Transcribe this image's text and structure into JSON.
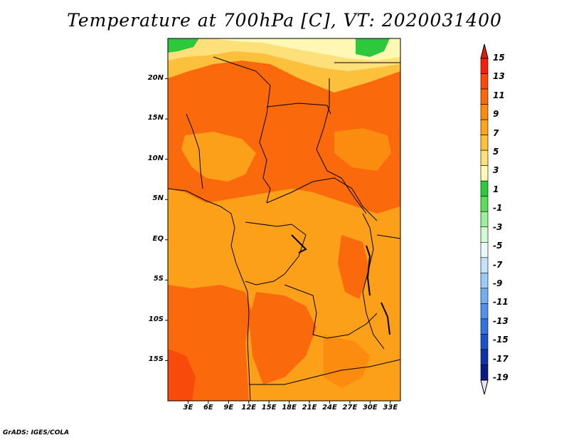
{
  "title": "Temperature at 700hPa [C], VT: 2020031400",
  "credit": "GrADS: IGES/COLA",
  "lat_ticks": [
    {
      "label": "20N",
      "value": 20
    },
    {
      "label": "15N",
      "value": 15
    },
    {
      "label": "10N",
      "value": 10
    },
    {
      "label": "5N",
      "value": 5
    },
    {
      "label": "EQ",
      "value": 0
    },
    {
      "label": "5S",
      "value": -5
    },
    {
      "label": "10S",
      "value": -10
    },
    {
      "label": "15S",
      "value": -15
    }
  ],
  "lon_ticks": [
    {
      "label": "3E",
      "value": 3
    },
    {
      "label": "6E",
      "value": 6
    },
    {
      "label": "9E",
      "value": 9
    },
    {
      "label": "12E",
      "value": 12
    },
    {
      "label": "15E",
      "value": 15
    },
    {
      "label": "18E",
      "value": 18
    },
    {
      "label": "21E",
      "value": 21
    },
    {
      "label": "24E",
      "value": 24
    },
    {
      "label": "27E",
      "value": 27
    },
    {
      "label": "30E",
      "value": 30
    },
    {
      "label": "33E",
      "value": 33
    }
  ],
  "map_extent": {
    "lon_min": 0,
    "lon_max": 34.5,
    "lat_min": -20,
    "lat_max": 25
  },
  "colorbar": {
    "labels": [
      "15",
      "13",
      "11",
      "9",
      "7",
      "5",
      "3",
      "1",
      "-1",
      "-3",
      "-5",
      "-7",
      "-9",
      "-11",
      "-13",
      "-15",
      "-17",
      "-19"
    ],
    "colors_top_to_bottom": [
      "#f0220a",
      "#f84a0a",
      "#fa6a0c",
      "#fb8c10",
      "#fca51c",
      "#fdc03c",
      "#fde07a",
      "#fef8b4",
      "#2ec83c",
      "#5cdc5c",
      "#9cf09c",
      "#d4fad4",
      "#e8fafa",
      "#c4e2fc",
      "#9ecaf8",
      "#76aef2",
      "#5290ea",
      "#3472dc",
      "#1e52c8",
      "#1034a6",
      "#0a1a7e"
    ],
    "over_color": "#e01e0a",
    "under_color": "#e4e4fa"
  },
  "field_colors": {
    "t9": "#fca01a",
    "t11": "#fb8c10",
    "t13": "#fa6a0c",
    "t15": "#f84a0a",
    "t7": "#fdc03c",
    "t5": "#fde07a",
    "t3": "#fef8b4",
    "t1": "#2ec83c"
  }
}
